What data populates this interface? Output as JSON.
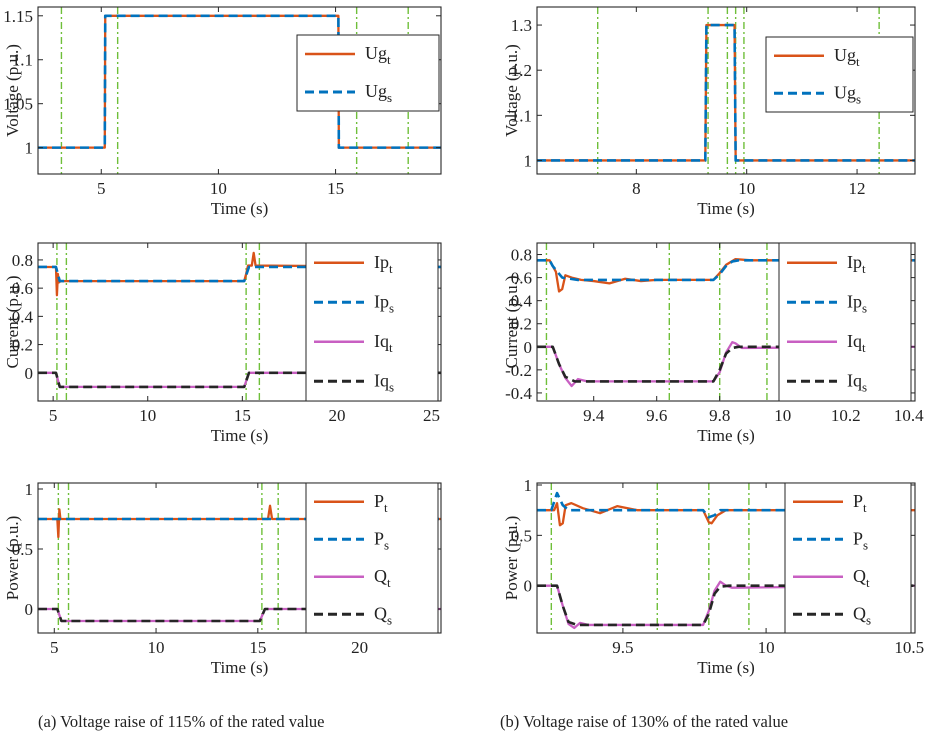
{
  "captions": {
    "a": "(a) Voltage raise of 115% of the rated value",
    "b": "(b) Voltage raise of 130% of the rated value"
  },
  "colors": {
    "test": "#d95319",
    "sim": "#0072bd",
    "q_test": "#c85fc2",
    "q_sim": "#262626",
    "marker": "#6fbf3a"
  },
  "chart_data": [
    {
      "id": "a-voltage",
      "type": "line",
      "xlabel": "Time (s)",
      "ylabel": "Voltage (p.u.)",
      "xlim": [
        2.3,
        19.5
      ],
      "ylim": [
        0.97,
        1.16
      ],
      "xticks": [
        5,
        10,
        15
      ],
      "yticks": [
        1,
        1.05,
        1.1,
        1.15
      ],
      "yticklabels": [
        "1",
        "1.05",
        "1.1",
        "1.15"
      ],
      "markers": [
        3.3,
        5.7,
        15.9,
        18.1
      ],
      "legend": [
        {
          "base": "Ug",
          "sub": "t"
        },
        {
          "base": "Ug",
          "sub": "s"
        }
      ],
      "series": [
        {
          "name": "Ug_t",
          "style": "test",
          "x": [
            2.3,
            5.15,
            5.17,
            15.12,
            15.14,
            19.5
          ],
          "y": [
            1.0,
            1.0,
            1.15,
            1.15,
            1.0,
            1.0
          ]
        },
        {
          "name": "Ug_s",
          "style": "sim",
          "x": [
            2.3,
            5.15,
            5.17,
            15.12,
            15.14,
            19.5
          ],
          "y": [
            1.0,
            1.0,
            1.15,
            1.15,
            1.0,
            1.0
          ]
        }
      ]
    },
    {
      "id": "b-voltage",
      "type": "line",
      "xlabel": "Time (s)",
      "ylabel": "Voltage (p.u.)",
      "xlim": [
        6.2,
        13.05
      ],
      "ylim": [
        0.97,
        1.34
      ],
      "xticks": [
        8,
        10,
        12
      ],
      "yticks": [
        1,
        1.1,
        1.2,
        1.3
      ],
      "yticklabels": [
        "1",
        "1.1",
        "1.2",
        "1.3"
      ],
      "markers": [
        7.3,
        9.3,
        9.65,
        9.8,
        9.95,
        12.4
      ],
      "legend": [
        {
          "base": "Ug",
          "sub": "t"
        },
        {
          "base": "Ug",
          "sub": "s"
        }
      ],
      "series": [
        {
          "name": "Ug_t",
          "style": "test",
          "x": [
            6.2,
            9.25,
            9.27,
            9.78,
            9.8,
            13.05
          ],
          "y": [
            1.0,
            1.0,
            1.3,
            1.3,
            1.0,
            1.0
          ]
        },
        {
          "name": "Ug_s",
          "style": "sim",
          "x": [
            6.2,
            9.25,
            9.27,
            9.78,
            9.8,
            13.05
          ],
          "y": [
            1.0,
            1.0,
            1.3,
            1.3,
            1.0,
            1.0
          ]
        }
      ]
    },
    {
      "id": "a-current",
      "type": "line",
      "xlabel": "Time (s)",
      "ylabel": "Current (p.u.)",
      "xlim": [
        4.2,
        25.5
      ],
      "ylim": [
        -0.2,
        0.92
      ],
      "xticks": [
        5,
        10,
        15,
        20,
        25
      ],
      "yticks": [
        0,
        0.2,
        0.4,
        0.6,
        0.8
      ],
      "yticklabels": [
        "0",
        "0.2",
        "0.4",
        "0.6",
        "0.8"
      ],
      "markers": [
        5.2,
        5.7,
        15.2,
        15.9
      ],
      "legend": [
        {
          "base": "Ip",
          "sub": "t"
        },
        {
          "base": "Ip",
          "sub": "s"
        },
        {
          "base": "Iq",
          "sub": "t"
        },
        {
          "base": "Iq",
          "sub": "s"
        }
      ],
      "series": [
        {
          "name": "Ip_t",
          "style": "test",
          "x": [
            4.2,
            5.15,
            5.2,
            5.25,
            5.3,
            5.4,
            15.1,
            15.2,
            15.3,
            15.5,
            15.6,
            15.7,
            25.5
          ],
          "y": [
            0.75,
            0.75,
            0.55,
            0.7,
            0.64,
            0.65,
            0.65,
            0.7,
            0.76,
            0.76,
            0.85,
            0.76,
            0.75
          ]
        },
        {
          "name": "Ip_s",
          "style": "sim",
          "x": [
            4.2,
            5.15,
            5.35,
            15.1,
            15.35,
            25.5
          ],
          "y": [
            0.75,
            0.75,
            0.65,
            0.65,
            0.75,
            0.75
          ]
        },
        {
          "name": "Iq_t",
          "style": "q_test",
          "x": [
            4.2,
            5.15,
            5.35,
            15.1,
            15.35,
            25.5
          ],
          "y": [
            0.0,
            0.0,
            -0.1,
            -0.1,
            0.0,
            0.0
          ]
        },
        {
          "name": "Iq_s",
          "style": "q_sim",
          "x": [
            4.2,
            5.15,
            5.35,
            15.1,
            15.35,
            25.5
          ],
          "y": [
            0.0,
            0.0,
            -0.1,
            -0.1,
            0.0,
            0.0
          ]
        }
      ]
    },
    {
      "id": "b-current",
      "type": "line",
      "xlabel": "Time (s)",
      "ylabel": "Current (p.u.)",
      "xlim": [
        9.22,
        10.42
      ],
      "ylim": [
        -0.47,
        0.9
      ],
      "xticks": [
        9.4,
        9.6,
        9.8,
        10,
        10.2,
        10.4
      ],
      "yticks": [
        -0.4,
        -0.2,
        0,
        0.2,
        0.4,
        0.6,
        0.8
      ],
      "yticklabels": [
        "-0.4",
        "-0.2",
        "0",
        "0.2",
        "0.4",
        "0.6",
        "0.8"
      ],
      "markers": [
        9.25,
        9.64,
        9.8,
        9.95
      ],
      "legend": [
        {
          "base": "Ip",
          "sub": "t"
        },
        {
          "base": "Ip",
          "sub": "s"
        },
        {
          "base": "Iq",
          "sub": "t"
        },
        {
          "base": "Iq",
          "sub": "s"
        }
      ],
      "series": [
        {
          "name": "Ip_t",
          "style": "test",
          "x": [
            9.22,
            9.26,
            9.28,
            9.29,
            9.3,
            9.31,
            9.33,
            9.36,
            9.4,
            9.45,
            9.5,
            9.55,
            9.6,
            9.78,
            9.8,
            9.82,
            9.85,
            9.9,
            10.42
          ],
          "y": [
            0.75,
            0.75,
            0.65,
            0.48,
            0.5,
            0.62,
            0.6,
            0.58,
            0.57,
            0.55,
            0.59,
            0.57,
            0.58,
            0.58,
            0.64,
            0.71,
            0.76,
            0.75,
            0.75
          ]
        },
        {
          "name": "Ip_s",
          "style": "sim",
          "x": [
            9.22,
            9.26,
            9.27,
            9.3,
            9.35,
            9.78,
            9.8,
            9.82,
            9.84,
            9.86,
            10.42
          ],
          "y": [
            0.75,
            0.75,
            0.7,
            0.6,
            0.58,
            0.58,
            0.63,
            0.7,
            0.74,
            0.75,
            0.75
          ]
        },
        {
          "name": "Iq_t",
          "style": "q_test",
          "x": [
            9.22,
            9.27,
            9.29,
            9.31,
            9.33,
            9.35,
            9.38,
            9.78,
            9.8,
            9.82,
            9.84,
            9.85,
            9.87,
            10.42
          ],
          "y": [
            0.0,
            0.0,
            -0.15,
            -0.27,
            -0.34,
            -0.28,
            -0.3,
            -0.3,
            -0.22,
            -0.05,
            0.04,
            0.03,
            -0.01,
            0.0
          ]
        },
        {
          "name": "Iq_s",
          "style": "q_sim",
          "x": [
            9.22,
            9.27,
            9.29,
            9.31,
            9.34,
            9.78,
            9.8,
            9.82,
            9.84,
            9.86,
            10.42
          ],
          "y": [
            0.0,
            0.0,
            -0.15,
            -0.26,
            -0.3,
            -0.3,
            -0.2,
            -0.06,
            -0.01,
            0.0,
            0.0
          ]
        }
      ]
    },
    {
      "id": "a-power",
      "type": "line",
      "xlabel": "Time (s)",
      "ylabel": "Power (p.u.)",
      "xlim": [
        4.2,
        24.0
      ],
      "ylim": [
        -0.2,
        1.05
      ],
      "xticks": [
        5,
        10,
        15,
        20
      ],
      "yticks": [
        0,
        0.5,
        1
      ],
      "yticklabels": [
        "0",
        "0.5",
        "1"
      ],
      "markers": [
        5.2,
        5.7,
        15.2,
        16.0
      ],
      "legend": [
        {
          "base": "P",
          "sub": "t"
        },
        {
          "base": "P",
          "sub": "s"
        },
        {
          "base": "Q",
          "sub": "t"
        },
        {
          "base": "Q",
          "sub": "s"
        }
      ],
      "series": [
        {
          "name": "P_t",
          "style": "test",
          "x": [
            4.2,
            5.15,
            5.2,
            5.25,
            5.3,
            15.5,
            15.6,
            15.7,
            24.0
          ],
          "y": [
            0.75,
            0.75,
            0.6,
            0.83,
            0.75,
            0.75,
            0.86,
            0.75,
            0.75
          ]
        },
        {
          "name": "P_s",
          "style": "sim",
          "x": [
            4.2,
            24.0
          ],
          "y": [
            0.75,
            0.75
          ]
        },
        {
          "name": "Q_t",
          "style": "q_test",
          "x": [
            4.2,
            5.15,
            5.35,
            15.1,
            15.35,
            24.0
          ],
          "y": [
            0.0,
            0.0,
            -0.1,
            -0.1,
            0.0,
            0.0
          ]
        },
        {
          "name": "Q_s",
          "style": "q_sim",
          "x": [
            4.2,
            5.15,
            5.35,
            15.1,
            15.35,
            24.0
          ],
          "y": [
            0.0,
            0.0,
            -0.1,
            -0.1,
            0.0,
            0.0
          ]
        }
      ]
    },
    {
      "id": "b-power",
      "type": "line",
      "xlabel": "Time (s)",
      "ylabel": "Power (p.u.)",
      "xlim": [
        9.2,
        10.52
      ],
      "ylim": [
        -0.47,
        1.02
      ],
      "xticks": [
        9.5,
        10,
        10.5
      ],
      "yticks": [
        0,
        0.5,
        1
      ],
      "yticklabels": [
        "0",
        "0.5",
        "1"
      ],
      "markers": [
        9.25,
        9.62,
        9.8,
        9.94
      ],
      "legend": [
        {
          "base": "P",
          "sub": "t"
        },
        {
          "base": "P",
          "sub": "s"
        },
        {
          "base": "Q",
          "sub": "t"
        },
        {
          "base": "Q",
          "sub": "s"
        }
      ],
      "series": [
        {
          "name": "P_t",
          "style": "test",
          "x": [
            9.2,
            9.26,
            9.27,
            9.28,
            9.29,
            9.3,
            9.32,
            9.36,
            9.42,
            9.48,
            9.55,
            9.78,
            9.8,
            9.81,
            9.83,
            9.86,
            10.52
          ],
          "y": [
            0.75,
            0.75,
            0.82,
            0.6,
            0.62,
            0.8,
            0.82,
            0.77,
            0.72,
            0.79,
            0.75,
            0.75,
            0.63,
            0.62,
            0.7,
            0.75,
            0.75
          ]
        },
        {
          "name": "P_s",
          "style": "sim",
          "x": [
            9.2,
            9.25,
            9.27,
            9.29,
            9.31,
            9.78,
            9.8,
            9.82,
            9.84,
            10.52
          ],
          "y": [
            0.75,
            0.75,
            0.92,
            0.8,
            0.75,
            0.75,
            0.68,
            0.7,
            0.75,
            0.75
          ]
        },
        {
          "name": "Q_t",
          "style": "q_test",
          "x": [
            9.2,
            9.27,
            9.29,
            9.31,
            9.33,
            9.35,
            9.38,
            9.78,
            9.8,
            9.82,
            9.84,
            9.86,
            9.88,
            10.52
          ],
          "y": [
            0.0,
            0.0,
            -0.2,
            -0.38,
            -0.42,
            -0.37,
            -0.39,
            -0.39,
            -0.25,
            -0.05,
            0.04,
            0.0,
            -0.02,
            0.0
          ]
        },
        {
          "name": "Q_s",
          "style": "q_sim",
          "x": [
            9.2,
            9.27,
            9.29,
            9.31,
            9.34,
            9.78,
            9.8,
            9.82,
            9.84,
            9.87,
            10.52
          ],
          "y": [
            0.0,
            0.0,
            -0.2,
            -0.36,
            -0.39,
            -0.39,
            -0.28,
            -0.08,
            -0.01,
            0.0,
            0.0
          ]
        }
      ]
    }
  ]
}
